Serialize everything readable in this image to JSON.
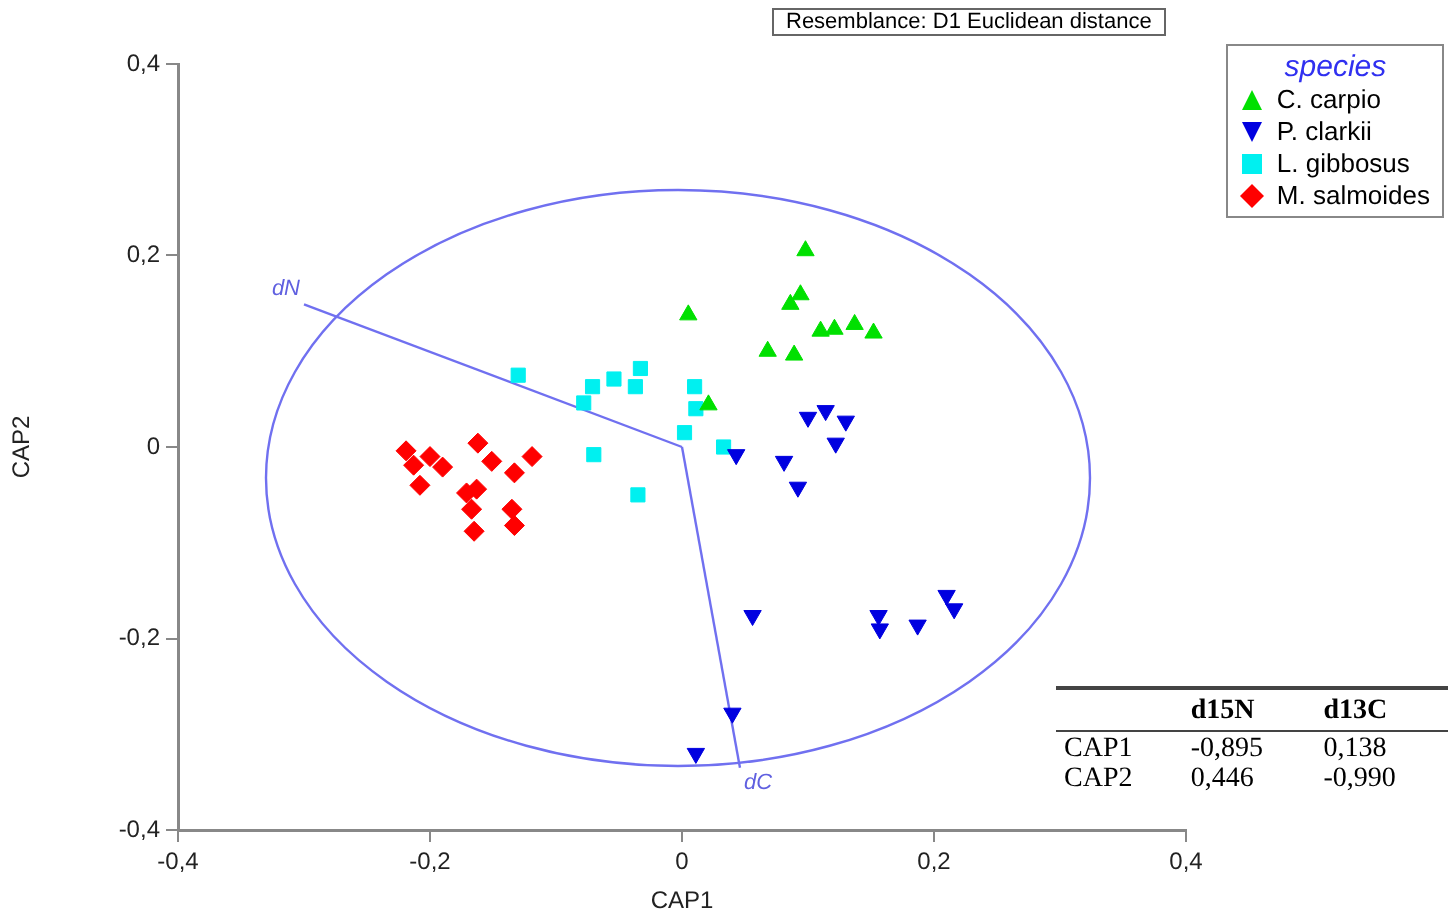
{
  "chart_data": {
    "type": "scatter",
    "xlabel": "CAP1",
    "ylabel": "CAP2",
    "legend_title": "species",
    "legend": "top right",
    "grid": false,
    "xlim": [
      -0.4,
      0.4
    ],
    "xticks": [
      {
        "value": -0.4,
        "label": "-0,4"
      },
      {
        "value": -0.2,
        "label": "-0,2"
      },
      0,
      {
        "value": 0.2,
        "label": "0,2"
      },
      {
        "value": 0.4,
        "label": "0,4"
      }
    ],
    "ylim": [
      -0.4,
      0.4
    ],
    "yticks": [
      {
        "value": -0.4,
        "label": "-0,4"
      },
      {
        "value": -0.2,
        "label": "-0,2"
      },
      0,
      {
        "value": 0.2,
        "label": "0,2"
      },
      {
        "value": 0.4,
        "label": "0,4"
      }
    ],
    "series": [
      {
        "name": "C. carpio",
        "color": "#00e000",
        "marker": "triangle",
        "x": [
          0.098,
          0.094,
          0.086,
          0.005,
          0.11,
          0.121,
          0.137,
          0.152,
          0.068,
          0.089,
          0.021
        ],
        "values": [
          0.205,
          0.159,
          0.149,
          0.138,
          0.121,
          0.123,
          0.128,
          0.119,
          0.1,
          0.096,
          0.044
        ]
      },
      {
        "name": "P. clarkii",
        "color": "#0000e0",
        "marker": "triangle-down",
        "x": [
          0.1,
          0.114,
          0.13,
          0.122,
          0.043,
          0.081,
          0.092,
          0.056,
          0.156,
          0.157,
          0.187,
          0.21,
          0.216,
          0.04,
          0.011
        ],
        "values": [
          0.031,
          0.038,
          0.027,
          0.004,
          -0.008,
          -0.015,
          -0.042,
          -0.176,
          -0.176,
          -0.19,
          -0.186,
          -0.155,
          -0.169,
          -0.278,
          -0.32
        ]
      },
      {
        "name": "L. gibbosus",
        "color": "#00f0f0",
        "marker": "square",
        "x": [
          -0.13,
          -0.078,
          -0.071,
          -0.054,
          -0.033,
          -0.037,
          0.01,
          0.011,
          0.002,
          0.033,
          -0.07,
          -0.035
        ],
        "values": [
          0.075,
          0.046,
          0.063,
          0.071,
          0.082,
          0.063,
          0.063,
          0.04,
          0.015,
          0.0,
          -0.008,
          -0.05
        ]
      },
      {
        "name": "M. salmoides",
        "color": "#ff0000",
        "marker": "diamond",
        "x": [
          -0.219,
          -0.213,
          -0.208,
          -0.19,
          -0.162,
          -0.151,
          -0.133,
          -0.119,
          -0.171,
          -0.163,
          -0.167,
          -0.135,
          -0.133,
          -0.165,
          -0.2
        ],
        "values": [
          -0.004,
          -0.019,
          -0.04,
          -0.021,
          0.004,
          -0.015,
          -0.027,
          -0.01,
          -0.048,
          -0.044,
          -0.065,
          -0.065,
          -0.082,
          -0.088,
          -0.01
        ]
      },
      {
        "type": "line",
        "color": "#7070f0",
        "marker": "none",
        "x": [
          -0.3,
          0
        ],
        "values": [
          0.149,
          0
        ]
      },
      {
        "type": "line",
        "color": "#7070f0",
        "marker": "none",
        "x": [
          0,
          0.046
        ],
        "values": [
          0,
          -0.335
        ]
      }
    ],
    "annotations": [
      "Resemblance: D1 Euclidean distance",
      {
        "text": "dN",
        "x": -0.3,
        "y": 0.149
      },
      {
        "text": "dC",
        "x": 0.046,
        "y": -0.335
      },
      "d15N",
      "d13C",
      "CAP1",
      "-0,895",
      "0,138",
      "CAP2",
      "0,446",
      "-0,990"
    ]
  }
}
